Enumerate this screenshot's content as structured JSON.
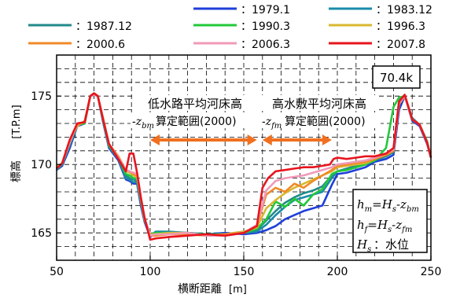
{
  "chart_data": {
    "type": "line",
    "title": "",
    "xlabel": "横断距離",
    "xunit": "[m]",
    "ylabel": "標高",
    "yunit": "[T.P.m]",
    "xlim": [
      50,
      250
    ],
    "ylim": [
      163,
      178
    ],
    "xticks": [
      50,
      100,
      150,
      200,
      250
    ],
    "yticks": [
      165,
      170,
      175
    ],
    "grid": "dashed",
    "legend_position": "top",
    "station_label": "70.4k",
    "annotations": {
      "low_channel_line1": "低水路平均河床高",
      "low_channel_line2_var": "-z",
      "low_channel_line2_sub": "bm",
      "low_channel_line2_text": "算定範囲(2000)",
      "high_floodplain_line1": "高水敷平均河床高",
      "high_floodplain_line2_var": "-z",
      "high_floodplain_line2_sub": "fm",
      "high_floodplain_line2_text": "算定範囲(2000)",
      "eq1_lhs": "h",
      "eq1_lhs_sub": "m",
      "eq1_rhs_a": "=H",
      "eq1_rhs_a_sub": "s",
      "eq1_rhs_b": "-z",
      "eq1_rhs_b_sub": "bm",
      "eq2_lhs": "h",
      "eq2_lhs_sub": "f",
      "eq2_rhs_a": "=H",
      "eq2_rhs_a_sub": "s",
      "eq2_rhs_b": "-z",
      "eq2_rhs_b_sub": "fm",
      "eq3_var": "H",
      "eq3_sub": "s",
      "eq3_text": "：水位",
      "arrow_color": "#f07020",
      "low_range": [
        100,
        157
      ],
      "high_range": [
        160,
        197
      ]
    },
    "series": [
      {
        "name": "：1979.1",
        "color": "#1f3fd8",
        "x": [
          50,
          53,
          57,
          61,
          65,
          68,
          70,
          72,
          75,
          78,
          83,
          87,
          89,
          91,
          93,
          95,
          97,
          100,
          103,
          110,
          120,
          130,
          140,
          150,
          157,
          162,
          167,
          172,
          177,
          182,
          187,
          192,
          197,
          200,
          205,
          210,
          215,
          220,
          226,
          230,
          233,
          236,
          240,
          244,
          248,
          250
        ],
        "y": [
          169.6,
          169.9,
          171.2,
          172.8,
          173.0,
          175.0,
          175.1,
          175.0,
          173.0,
          171.2,
          170.3,
          168.9,
          168.8,
          168.6,
          168.6,
          167.0,
          165.8,
          164.7,
          165.0,
          165.0,
          165.0,
          164.9,
          165.0,
          164.9,
          165.0,
          165.2,
          165.5,
          166.0,
          166.3,
          166.6,
          166.8,
          167.0,
          168.5,
          169.3,
          169.4,
          169.6,
          169.8,
          170.2,
          170.4,
          170.7,
          174.0,
          175.0,
          173.2,
          172.8,
          171.5,
          170.5
        ]
      },
      {
        "name": "：1983.12",
        "color": "#1a8ca8",
        "x": [
          50,
          53,
          57,
          61,
          65,
          68,
          70,
          72,
          75,
          78,
          83,
          87,
          89,
          91,
          93,
          95,
          97,
          100,
          103,
          110,
          120,
          130,
          140,
          150,
          157,
          162,
          167,
          172,
          177,
          182,
          187,
          192,
          197,
          200,
          205,
          210,
          215,
          220,
          226,
          230,
          233,
          236,
          240,
          244,
          248,
          250
        ],
        "y": [
          169.6,
          170.0,
          171.5,
          172.9,
          173.0,
          175.0,
          175.2,
          175.0,
          173.0,
          171.4,
          170.4,
          169.0,
          168.9,
          168.7,
          168.7,
          167.2,
          165.9,
          164.8,
          165.1,
          165.1,
          165.0,
          164.9,
          164.8,
          165.0,
          165.1,
          165.6,
          166.3,
          166.9,
          167.4,
          167.6,
          167.8,
          168.0,
          169.0,
          169.5,
          169.6,
          169.8,
          170.0,
          170.3,
          170.6,
          170.9,
          174.6,
          175.0,
          173.3,
          172.9,
          171.6,
          170.5
        ]
      },
      {
        "name": "：1987.12",
        "color": "#228a8a",
        "x": [
          50,
          53,
          57,
          61,
          65,
          68,
          70,
          72,
          75,
          78,
          83,
          87,
          89,
          91,
          93,
          95,
          97,
          100,
          103,
          110,
          120,
          130,
          140,
          150,
          157,
          162,
          167,
          172,
          177,
          182,
          187,
          192,
          197,
          200,
          205,
          210,
          215,
          220,
          226,
          230,
          233,
          236,
          240,
          244,
          248,
          250
        ],
        "y": [
          169.7,
          170.0,
          171.4,
          172.8,
          173.1,
          175.0,
          175.1,
          175.0,
          173.1,
          171.3,
          170.4,
          169.2,
          169.0,
          168.9,
          168.8,
          167.3,
          165.9,
          164.9,
          165.0,
          165.0,
          165.0,
          164.9,
          164.9,
          165.1,
          165.2,
          165.9,
          166.6,
          167.2,
          167.6,
          167.9,
          168.1,
          168.4,
          169.2,
          169.5,
          169.7,
          169.9,
          170.1,
          170.3,
          170.6,
          170.9,
          174.7,
          175.0,
          173.4,
          172.9,
          171.6,
          170.5
        ]
      },
      {
        "name": "：1990.3",
        "color": "#22c83a",
        "x": [
          50,
          53,
          57,
          61,
          65,
          68,
          70,
          72,
          75,
          78,
          83,
          87,
          89,
          91,
          93,
          95,
          97,
          100,
          103,
          110,
          120,
          130,
          140,
          150,
          157,
          162,
          167,
          172,
          177,
          182,
          187,
          192,
          197,
          200,
          205,
          210,
          215,
          220,
          226,
          230,
          233,
          236,
          240,
          244,
          248,
          250
        ],
        "y": [
          169.7,
          170.1,
          171.6,
          172.9,
          173.0,
          175.0,
          175.2,
          175.0,
          173.2,
          171.4,
          170.5,
          169.3,
          169.2,
          169.0,
          169.0,
          167.4,
          166.0,
          164.9,
          165.0,
          165.0,
          164.9,
          164.9,
          164.9,
          165.0,
          165.3,
          166.0,
          167.3,
          166.9,
          167.5,
          167.0,
          167.8,
          168.2,
          169.3,
          169.5,
          169.6,
          169.8,
          170.0,
          170.3,
          171.2,
          174.2,
          174.9,
          175.0,
          173.3,
          172.9,
          171.7,
          170.5
        ]
      },
      {
        "name": "：1996.3",
        "color": "#d8b830",
        "x": [
          50,
          53,
          57,
          61,
          65,
          68,
          70,
          72,
          75,
          78,
          83,
          87,
          89,
          91,
          93,
          95,
          97,
          100,
          103,
          110,
          120,
          130,
          140,
          150,
          157,
          162,
          167,
          172,
          177,
          182,
          187,
          192,
          197,
          200,
          205,
          210,
          215,
          220,
          226,
          230,
          233,
          236,
          240,
          244,
          248,
          250
        ],
        "y": [
          169.8,
          170.1,
          171.8,
          172.8,
          173.2,
          175.0,
          175.1,
          175.0,
          173.3,
          171.5,
          170.6,
          169.5,
          169.4,
          169.2,
          169.1,
          167.5,
          166.0,
          164.9,
          164.9,
          165.0,
          165.0,
          164.8,
          164.9,
          165.1,
          165.4,
          166.8,
          167.4,
          167.9,
          168.3,
          168.6,
          168.9,
          169.2,
          169.5,
          169.8,
          169.9,
          170.0,
          170.1,
          170.4,
          170.7,
          171.0,
          174.6,
          175.0,
          173.3,
          172.9,
          171.6,
          170.5
        ]
      },
      {
        "name": "：2000.6",
        "color": "#f08a28",
        "x": [
          50,
          53,
          57,
          61,
          65,
          68,
          70,
          72,
          75,
          78,
          83,
          87,
          89,
          91,
          93,
          95,
          97,
          100,
          103,
          110,
          120,
          130,
          140,
          150,
          157,
          162,
          167,
          172,
          177,
          182,
          187,
          192,
          197,
          200,
          205,
          210,
          215,
          220,
          226,
          230,
          233,
          236,
          240,
          244,
          248,
          250
        ],
        "y": [
          169.7,
          170.1,
          171.7,
          172.9,
          173.1,
          175.0,
          175.2,
          175.0,
          173.2,
          171.5,
          170.6,
          169.6,
          169.5,
          169.3,
          169.2,
          167.5,
          166.0,
          164.8,
          164.8,
          164.9,
          164.9,
          164.8,
          164.9,
          165.0,
          165.5,
          167.8,
          168.3,
          168.0,
          168.6,
          168.3,
          168.8,
          169.2,
          169.6,
          169.9,
          170.0,
          170.1,
          170.2,
          170.4,
          170.7,
          171.0,
          174.4,
          175.0,
          173.3,
          172.9,
          171.6,
          170.5
        ]
      },
      {
        "name": "：2006.3",
        "color": "#f09ab8",
        "x": [
          50,
          53,
          57,
          61,
          65,
          68,
          70,
          72,
          75,
          78,
          83,
          87,
          89,
          91,
          93,
          95,
          97,
          100,
          103,
          110,
          120,
          130,
          140,
          150,
          157,
          162,
          167,
          172,
          177,
          182,
          187,
          192,
          197,
          200,
          205,
          210,
          215,
          220,
          226,
          230,
          233,
          236,
          240,
          244,
          248,
          250
        ],
        "y": [
          169.7,
          170.1,
          171.6,
          173.0,
          173.1,
          175.0,
          175.1,
          175.0,
          173.2,
          171.5,
          170.5,
          169.6,
          169.5,
          169.4,
          169.3,
          167.6,
          166.1,
          164.8,
          164.9,
          164.9,
          165.0,
          164.8,
          164.8,
          165.0,
          165.6,
          168.1,
          168.8,
          169.0,
          169.1,
          169.2,
          169.4,
          169.6,
          169.8,
          170.0,
          170.1,
          170.2,
          170.3,
          170.5,
          170.8,
          171.1,
          174.5,
          175.0,
          173.3,
          172.9,
          171.6,
          170.5
        ]
      },
      {
        "name": "：2007.8",
        "color": "#e8141e",
        "x": [
          50,
          53,
          57,
          61,
          65,
          68,
          70,
          72,
          75,
          78,
          83,
          87,
          89,
          91,
          93,
          95,
          97,
          100,
          103,
          110,
          120,
          130,
          140,
          150,
          157,
          160,
          163,
          167,
          172,
          177,
          182,
          187,
          192,
          196,
          198,
          200,
          205,
          210,
          215,
          220,
          226,
          230,
          233,
          236,
          240,
          244,
          248,
          250
        ],
        "y": [
          169.7,
          170.1,
          171.8,
          173.0,
          173.1,
          175.0,
          175.2,
          175.0,
          173.2,
          171.5,
          170.4,
          169.5,
          170.8,
          170.8,
          169.4,
          167.6,
          166.1,
          164.5,
          164.6,
          164.7,
          164.8,
          164.9,
          164.8,
          165.0,
          165.5,
          168.3,
          169.0,
          169.5,
          169.6,
          169.7,
          169.8,
          169.8,
          169.9,
          170.0,
          170.4,
          170.5,
          170.4,
          170.5,
          170.6,
          170.6,
          170.8,
          171.2,
          174.6,
          175.1,
          173.3,
          172.9,
          171.6,
          170.5
        ]
      }
    ]
  }
}
